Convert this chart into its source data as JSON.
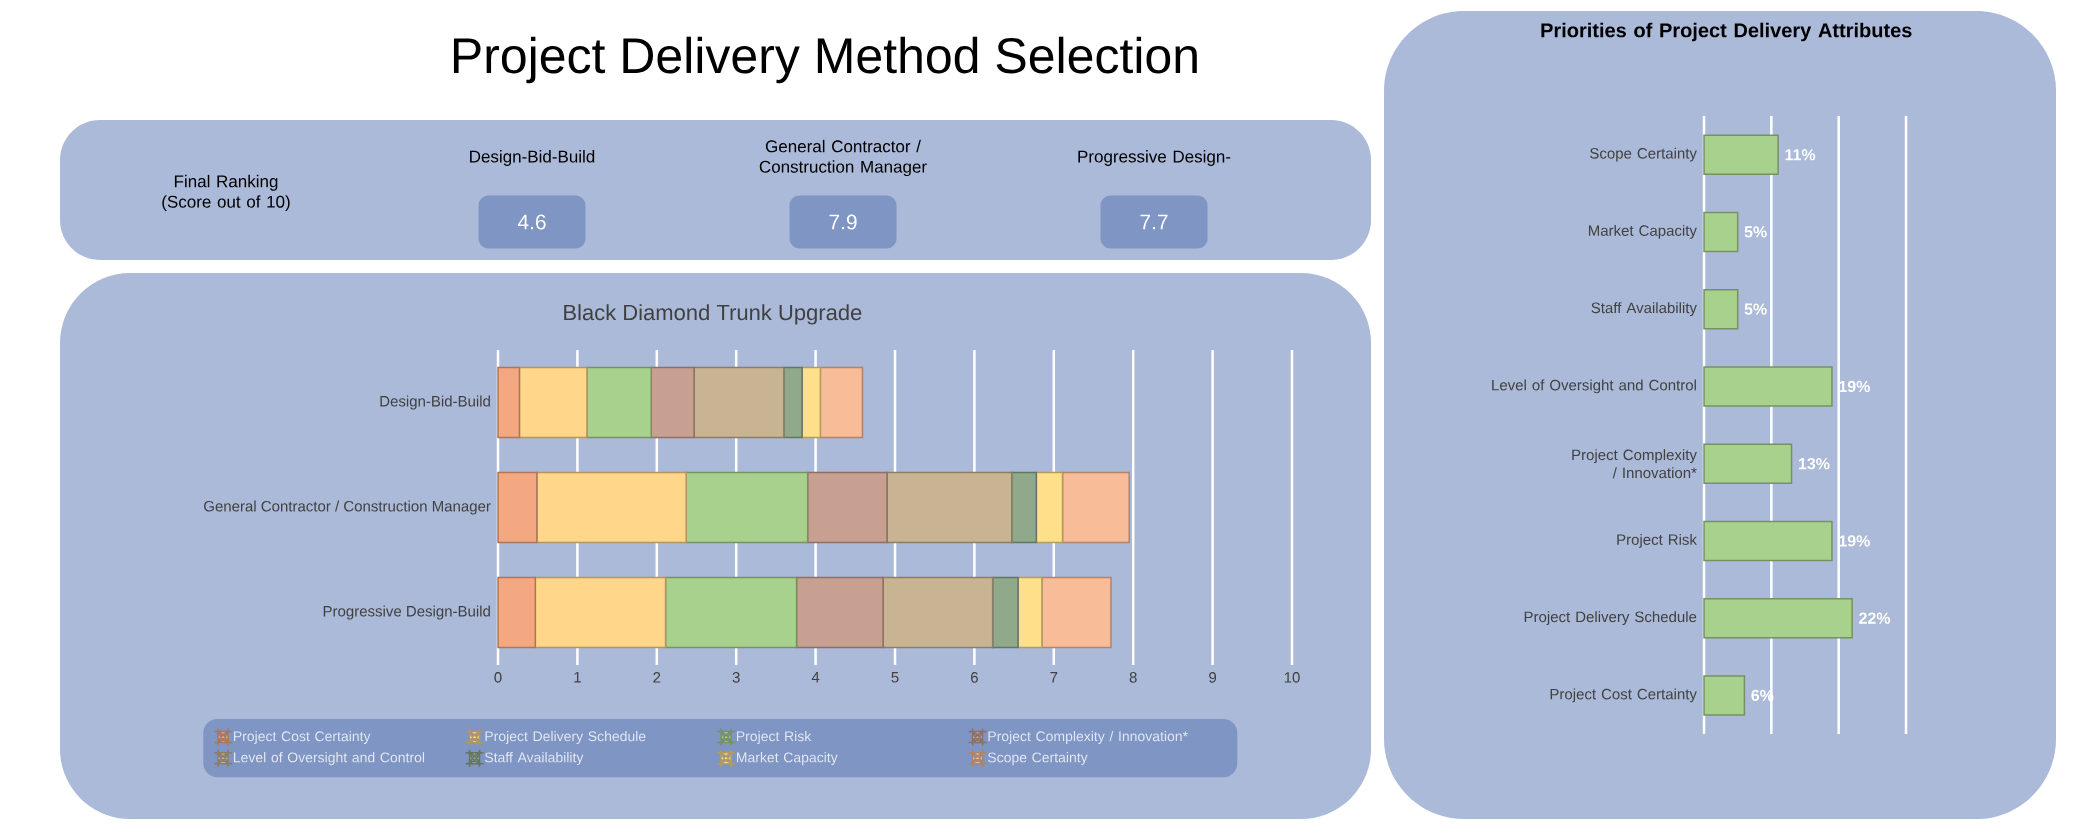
{
  "chart_data": [
    {
      "type": "other",
      "title": "Project Delivery Method Selection",
      "annotations": [
        "Final Ranking (Score out of 10)",
        "Design-Bid-Build",
        "4.6",
        "General Contractor / Construction Manager",
        "7.9",
        "Progressive Design-",
        "7.7"
      ]
    },
    {
      "type": "bar",
      "orientation": "horizontal",
      "stacked": true,
      "title": "Black Diamond Trunk Upgrade",
      "categories": [
        "Design-Bid-Build",
        "General Contractor / Construction Manager",
        "Progressive Design-Build"
      ],
      "series": [
        {
          "name": "Project Cost Certainty",
          "color": "#f4a882",
          "values": [
            0.27,
            0.49,
            0.47
          ]
        },
        {
          "name": "Project Delivery Schedule",
          "color": "#ffd68a",
          "values": [
            0.85,
            1.88,
            1.64
          ]
        },
        {
          "name": "Project Risk",
          "color": "#a9d18e",
          "values": [
            0.81,
            1.53,
            1.65
          ]
        },
        {
          "name": "Project Complexity / Innovation*",
          "color": "#c8a092",
          "values": [
            0.54,
            1.0,
            1.09
          ]
        },
        {
          "name": "Level of Oversight and Control",
          "color": "#c8b492",
          "values": [
            1.13,
            1.57,
            1.38
          ]
        },
        {
          "name": "Staff Availability",
          "color": "#8fa98a",
          "values": [
            0.23,
            0.31,
            0.32
          ]
        },
        {
          "name": "Market Capacity",
          "color": "#ffe08a",
          "values": [
            0.23,
            0.33,
            0.3
          ]
        },
        {
          "name": "Scope Certainty",
          "color": "#f8bc98",
          "values": [
            0.53,
            0.84,
            0.87
          ]
        }
      ],
      "xlim": [
        0,
        10
      ],
      "xticks": [
        0,
        1,
        2,
        3,
        4,
        5,
        6,
        7,
        8,
        9,
        10
      ],
      "grid": "x",
      "legend": "bottom"
    },
    {
      "type": "bar",
      "orientation": "horizontal",
      "title": "Priorities of Project Delivery Attributes",
      "categories": [
        "Scope Certainty",
        "Market Capacity",
        "Staff Availability",
        "Level of Oversight and Control",
        "Project Complexity / Innovation*",
        "Project Risk",
        "Project Delivery Schedule",
        "Project Cost Certainty"
      ],
      "values": [
        11,
        5,
        5,
        19,
        13,
        19,
        22,
        6
      ],
      "color": "#a9d18e",
      "value_labels": [
        "11%",
        "5%",
        "5%",
        "19%",
        "13%",
        "19%",
        "22%",
        "6%"
      ],
      "xlim": [
        0,
        30
      ],
      "xticks": [
        {
          "value": 0,
          "label": null
        },
        {
          "value": 10,
          "label": null
        },
        {
          "value": 20,
          "label": null
        },
        {
          "value": 30,
          "label": null
        }
      ],
      "tick_labels": "y",
      "grid": "x"
    }
  ]
}
